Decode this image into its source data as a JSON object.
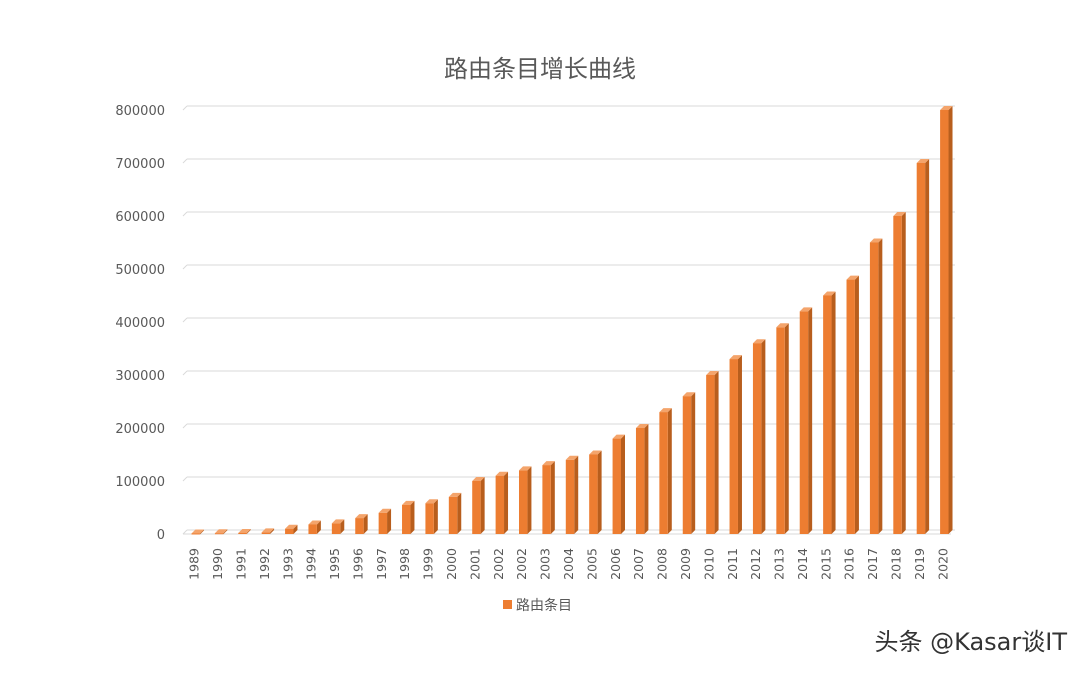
{
  "chart_data": {
    "type": "bar",
    "title": "路由条目增长曲线",
    "xlabel": "",
    "ylabel": "",
    "ylim": [
      0,
      800000
    ],
    "y_ticks": [
      "0",
      "100000",
      "200000",
      "300000",
      "400000",
      "500000",
      "600000",
      "700000",
      "800000"
    ],
    "grid": true,
    "legend_position": "bottom",
    "bar_color": "#ED7D31",
    "categories": [
      "1989",
      "1990",
      "1991",
      "1992",
      "1993",
      "1994",
      "1995",
      "1996",
      "1997",
      "1998",
      "1999",
      "2000",
      "2001",
      "2002",
      "2002",
      "2003",
      "2004",
      "2005",
      "2006",
      "2007",
      "2008",
      "2009",
      "2010",
      "2011",
      "2012",
      "2013",
      "2014",
      "2015",
      "2016",
      "2017",
      "2018",
      "2019",
      "2020"
    ],
    "series": [
      {
        "name": "路由条目",
        "values": [
          1000,
          1500,
          2000,
          3000,
          10000,
          18000,
          20000,
          30000,
          40000,
          55000,
          58000,
          70000,
          100000,
          110000,
          120000,
          130000,
          140000,
          150000,
          180000,
          200000,
          230000,
          260000,
          300000,
          330000,
          360000,
          390000,
          420000,
          450000,
          480000,
          550000,
          600000,
          700000,
          800000
        ]
      }
    ]
  },
  "watermark": "头条 @Kasar谈IT"
}
